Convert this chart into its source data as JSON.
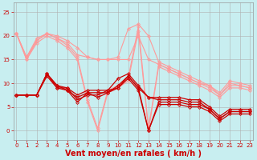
{
  "bg_color": "#c8eef0",
  "grid_color": "#b0b0b0",
  "xlabel": "Vent moyen/en rafales ( km/h )",
  "xlabel_color": "#cc0000",
  "xlabel_fontsize": 7,
  "yticks": [
    0,
    5,
    10,
    15,
    20,
    25
  ],
  "xticks": [
    0,
    1,
    2,
    3,
    4,
    5,
    6,
    7,
    8,
    9,
    10,
    11,
    12,
    13,
    14,
    15,
    16,
    17,
    18,
    19,
    20,
    21,
    22,
    23
  ],
  "ylim": [
    -2,
    27
  ],
  "xlim": [
    -0.3,
    23.3
  ],
  "lines_light": [
    {
      "x": [
        0,
        1,
        2,
        3,
        4,
        5,
        6,
        7,
        8,
        9,
        10,
        11,
        12,
        13,
        14,
        15,
        16,
        17,
        18,
        19,
        20,
        21,
        22,
        23
      ],
      "y": [
        20.5,
        15.5,
        19.5,
        20.5,
        20.0,
        19.0,
        17.5,
        15.5,
        15.0,
        15.0,
        15.0,
        15.0,
        20.0,
        15.0,
        14.0,
        13.0,
        12.0,
        11.0,
        10.0,
        9.5,
        8.0,
        10.5,
        10.0,
        9.5
      ]
    },
    {
      "x": [
        0,
        1,
        2,
        3,
        4,
        5,
        6,
        7,
        8,
        9,
        10,
        11,
        12,
        13,
        14,
        15,
        16,
        17,
        18,
        19,
        20,
        21,
        22,
        23
      ],
      "y": [
        20.5,
        15.5,
        19.0,
        20.5,
        19.5,
        18.5,
        16.0,
        15.5,
        15.0,
        15.0,
        15.5,
        21.5,
        22.5,
        20.0,
        14.5,
        13.5,
        12.5,
        11.5,
        10.5,
        9.5,
        7.5,
        10.0,
        9.5,
        9.0
      ]
    },
    {
      "x": [
        0,
        1,
        2,
        3,
        4,
        5,
        6,
        7,
        8,
        9,
        10,
        11,
        12,
        13,
        14,
        15,
        16,
        17,
        18,
        19,
        20,
        21,
        22,
        23
      ],
      "y": [
        20.5,
        15.0,
        19.0,
        20.5,
        19.5,
        18.0,
        15.5,
        6.5,
        0.5,
        8.5,
        9.5,
        11.0,
        22.0,
        0.5,
        14.0,
        13.0,
        12.0,
        11.0,
        10.0,
        9.0,
        7.5,
        9.5,
        9.5,
        9.0
      ]
    },
    {
      "x": [
        0,
        1,
        2,
        3,
        4,
        5,
        6,
        7,
        8,
        9,
        10,
        11,
        12,
        13,
        14,
        15,
        16,
        17,
        18,
        19,
        20,
        21,
        22,
        23
      ],
      "y": [
        20.5,
        15.0,
        18.5,
        20.0,
        19.0,
        17.5,
        15.0,
        6.0,
        0.0,
        8.0,
        9.0,
        10.5,
        21.0,
        0.0,
        13.5,
        12.5,
        11.5,
        10.5,
        9.5,
        8.5,
        7.0,
        9.0,
        9.0,
        8.5
      ]
    }
  ],
  "lines_dark": [
    {
      "x": [
        0,
        1,
        2,
        3,
        4,
        5,
        6,
        7,
        8,
        9,
        10,
        11,
        12,
        13,
        14,
        15,
        16,
        17,
        18,
        19,
        20,
        21,
        22,
        23
      ],
      "y": [
        7.5,
        7.5,
        7.5,
        12.0,
        9.5,
        9.0,
        7.5,
        8.5,
        8.5,
        8.5,
        11.0,
        12.0,
        9.5,
        7.0,
        7.0,
        7.0,
        7.0,
        6.5,
        6.5,
        5.0,
        3.0,
        4.5,
        4.5,
        4.5
      ]
    },
    {
      "x": [
        0,
        1,
        2,
        3,
        4,
        5,
        6,
        7,
        8,
        9,
        10,
        11,
        12,
        13,
        14,
        15,
        16,
        17,
        18,
        19,
        20,
        21,
        22,
        23
      ],
      "y": [
        7.5,
        7.5,
        7.5,
        12.0,
        9.5,
        8.5,
        7.0,
        8.0,
        8.0,
        8.0,
        9.5,
        11.5,
        9.0,
        7.0,
        6.5,
        6.5,
        6.5,
        6.0,
        6.0,
        4.5,
        2.5,
        4.0,
        4.0,
        4.0
      ]
    },
    {
      "x": [
        0,
        1,
        2,
        3,
        4,
        5,
        6,
        7,
        8,
        9,
        10,
        11,
        12,
        13,
        14,
        15,
        16,
        17,
        18,
        19,
        20,
        21,
        22,
        23
      ],
      "y": [
        7.5,
        7.5,
        7.5,
        12.0,
        9.0,
        9.0,
        6.5,
        7.5,
        7.5,
        8.5,
        9.0,
        11.5,
        9.0,
        0.0,
        6.0,
        6.0,
        6.0,
        5.5,
        5.5,
        4.5,
        2.5,
        4.0,
        4.0,
        4.0
      ]
    },
    {
      "x": [
        0,
        1,
        2,
        3,
        4,
        5,
        6,
        7,
        8,
        9,
        10,
        11,
        12,
        13,
        14,
        15,
        16,
        17,
        18,
        19,
        20,
        21,
        22,
        23
      ],
      "y": [
        7.5,
        7.5,
        7.5,
        11.5,
        9.0,
        8.5,
        6.0,
        8.0,
        7.0,
        8.0,
        9.0,
        11.0,
        8.5,
        0.0,
        5.5,
        5.5,
        5.5,
        5.0,
        5.0,
        4.0,
        2.0,
        3.5,
        3.5,
        3.5
      ]
    }
  ],
  "light_color": "#ff9999",
  "dark_color": "#cc0000"
}
